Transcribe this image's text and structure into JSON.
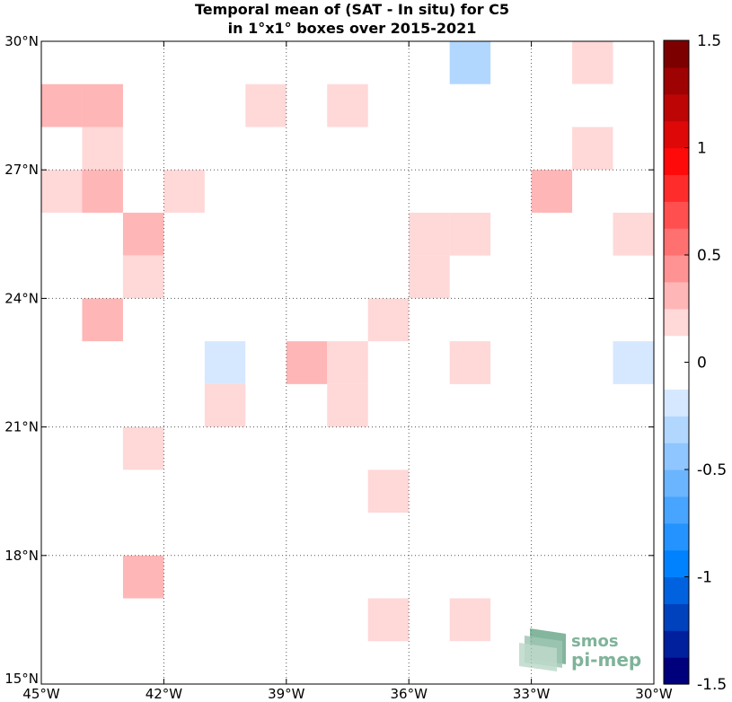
{
  "chart_data": {
    "type": "heatmap",
    "title": [
      "Temporal mean of (SAT - In situ) for C5",
      "in 1°x1° boxes over 2015-2021"
    ],
    "x_range": [
      -45,
      -30
    ],
    "y_range": [
      15,
      30
    ],
    "x_ticks": [
      {
        "value": -45,
        "label": "45°W"
      },
      {
        "value": -42,
        "label": "42°W"
      },
      {
        "value": -39,
        "label": "39°W"
      },
      {
        "value": -36,
        "label": "36°W"
      },
      {
        "value": -33,
        "label": "33°W"
      },
      {
        "value": -30,
        "label": "30°W"
      }
    ],
    "y_ticks": [
      {
        "value": 30,
        "label": "30°N"
      },
      {
        "value": 27,
        "label": "27°N"
      },
      {
        "value": 24,
        "label": "24°N"
      },
      {
        "value": 21,
        "label": "21°N"
      },
      {
        "value": 18,
        "label": "18°N"
      },
      {
        "value": 15,
        "label": "15°N"
      }
    ],
    "colorbar": {
      "range": [
        -1.5,
        1.5
      ],
      "ticks": [
        {
          "value": 1.5,
          "label": "1.5"
        },
        {
          "value": 1,
          "label": "1"
        },
        {
          "value": 0.5,
          "label": "0.5"
        },
        {
          "value": 0,
          "label": "0"
        },
        {
          "value": -0.5,
          "label": "-0.5"
        },
        {
          "value": -1,
          "label": "-1"
        },
        {
          "value": -1.5,
          "label": "-1.5"
        }
      ]
    },
    "cells": [
      {
        "lon": -42,
        "lat": 29,
        "value": -0.1
      },
      {
        "lon": -35,
        "lat": 29,
        "value": -0.35
      },
      {
        "lon": -32,
        "lat": 29,
        "value": 0.15
      },
      {
        "lon": -45,
        "lat": 28,
        "value": 0.25
      },
      {
        "lon": -44,
        "lat": 28,
        "value": 0.25
      },
      {
        "lon": -41,
        "lat": 28,
        "value": -0.1
      },
      {
        "lon": -40,
        "lat": 28,
        "value": 0.15
      },
      {
        "lon": -38,
        "lat": 28,
        "value": 0.15
      },
      {
        "lon": -32,
        "lat": 28,
        "value": -0.1
      },
      {
        "lon": -44,
        "lat": 27,
        "value": 0.15
      },
      {
        "lon": -32,
        "lat": 27,
        "value": 0.15
      },
      {
        "lon": -31,
        "lat": 27,
        "value": -0.1
      },
      {
        "lon": -45,
        "lat": 26,
        "value": 0.15
      },
      {
        "lon": -44,
        "lat": 26,
        "value": 0.3
      },
      {
        "lon": -42,
        "lat": 26,
        "value": 0.15
      },
      {
        "lon": -33,
        "lat": 26,
        "value": 0.35
      },
      {
        "lon": -43,
        "lat": 25,
        "value": 0.35
      },
      {
        "lon": -36,
        "lat": 25,
        "value": 0.15
      },
      {
        "lon": -35,
        "lat": 25,
        "value": 0.15
      },
      {
        "lon": -31,
        "lat": 25,
        "value": 0.15
      },
      {
        "lon": -43,
        "lat": 24,
        "value": 0.15
      },
      {
        "lon": -37,
        "lat": 24,
        "value": -0.1
      },
      {
        "lon": -36,
        "lat": 24,
        "value": 0.15
      },
      {
        "lon": -44,
        "lat": 23,
        "value": 0.3
      },
      {
        "lon": -39,
        "lat": 23,
        "value": -0.1
      },
      {
        "lon": -37,
        "lat": 23,
        "value": 0.15
      },
      {
        "lon": -35,
        "lat": 23,
        "value": -0.1
      },
      {
        "lon": -33,
        "lat": 23,
        "value": -0.1
      },
      {
        "lon": -32,
        "lat": 23,
        "value": -0.1
      },
      {
        "lon": -41,
        "lat": 22,
        "value": -0.25
      },
      {
        "lon": -40,
        "lat": 22,
        "value": -0.1
      },
      {
        "lon": -39,
        "lat": 22,
        "value": 0.35
      },
      {
        "lon": -38,
        "lat": 22,
        "value": 0.15
      },
      {
        "lon": -35,
        "lat": 22,
        "value": 0.15
      },
      {
        "lon": -33,
        "lat": 22,
        "value": -0.1
      },
      {
        "lon": -31,
        "lat": 22,
        "value": -0.25
      },
      {
        "lon": -41,
        "lat": 21,
        "value": 0.15
      },
      {
        "lon": -38,
        "lat": 21,
        "value": 0.15
      },
      {
        "lon": -32,
        "lat": 21,
        "value": -0.1
      },
      {
        "lon": -43,
        "lat": 20,
        "value": 0.15
      },
      {
        "lon": -40,
        "lat": 20,
        "value": -0.1
      },
      {
        "lon": -31,
        "lat": 20,
        "value": -0.1
      },
      {
        "lon": -44,
        "lat": 19,
        "value": -0.1
      },
      {
        "lon": -37,
        "lat": 19,
        "value": 0.15
      },
      {
        "lon": -34,
        "lat": 19,
        "value": -0.1
      },
      {
        "lon": -32,
        "lat": 19,
        "value": -0.1
      },
      {
        "lon": -44,
        "lat": 18,
        "value": -0.1
      },
      {
        "lon": -43,
        "lat": 17,
        "value": 0.3
      },
      {
        "lon": -36,
        "lat": 17,
        "value": -0.1
      },
      {
        "lon": -31,
        "lat": 17,
        "value": -0.1
      },
      {
        "lon": -37,
        "lat": 16,
        "value": 0.15
      },
      {
        "lon": -35,
        "lat": 16,
        "value": 0.15
      },
      {
        "lon": -35,
        "lat": 15,
        "value": -0.1
      }
    ],
    "grid": "dotted"
  },
  "logo": {
    "line1": "smos",
    "line2": "pi-mep"
  },
  "colors": {
    "background": "#ffffff",
    "grid": "#555555",
    "logo": "#7fb39a"
  }
}
